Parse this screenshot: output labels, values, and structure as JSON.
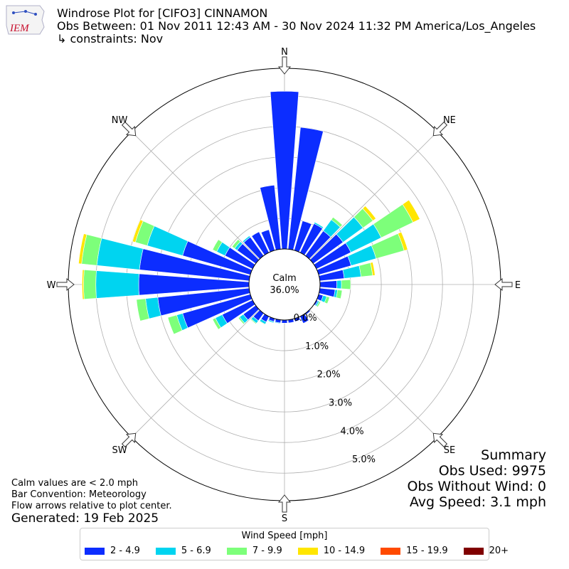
{
  "logo": {
    "text": "IEM"
  },
  "title": {
    "line1": "Windrose Plot for [CIFO3] CINNAMON",
    "line2": "Obs Between: 01 Nov 2011 12:43 AM - 30 Nov 2024 11:32 PM America/Los_Angeles",
    "line3": "↳ constraints: Nov"
  },
  "summary": {
    "heading": "Summary",
    "obs_used": "Obs Used: 9975",
    "obs_without_wind": "Obs Without Wind: 0",
    "avg_speed": "Avg Speed: 3.1 mph"
  },
  "notes": {
    "calm": "Calm values are < 2.0 mph",
    "bar_convention": "Bar Convention: Meteorology",
    "flow_arrows": "Flow arrows relative to plot center.",
    "generated": "Generated: 19 Feb 2025"
  },
  "legend": {
    "title": "Wind Speed [mph]",
    "items": [
      {
        "label": "2 - 4.9",
        "color": "#0c2dff"
      },
      {
        "label": "5 - 6.9",
        "color": "#00d4f0"
      },
      {
        "label": "7 - 9.9",
        "color": "#7dff7a"
      },
      {
        "label": "10 - 14.9",
        "color": "#ffe600"
      },
      {
        "label": "15 - 19.9",
        "color": "#ff4a00"
      },
      {
        "label": "20+",
        "color": "#800000"
      }
    ]
  },
  "chart_data": {
    "type": "windrose",
    "calm_label": "Calm",
    "calm_value": "36.0%",
    "directions": [
      "N",
      "NE",
      "E",
      "SE",
      "S",
      "SW",
      "W",
      "NW"
    ],
    "rlabels": [
      "0.0%",
      "1.0%",
      "2.0%",
      "3.0%",
      "4.0%",
      "5.0%"
    ],
    "rmax_percent": 5.9,
    "sector_degrees": [
      0,
      10,
      20,
      30,
      40,
      50,
      60,
      70,
      80,
      90,
      100,
      110,
      120,
      130,
      140,
      150,
      160,
      170,
      180,
      190,
      200,
      210,
      220,
      230,
      240,
      250,
      260,
      270,
      280,
      290,
      300,
      310,
      320,
      330,
      340,
      350
    ],
    "bins": [
      "2 - 4.9",
      "5 - 6.9",
      "7 - 9.9",
      "10 - 14.9",
      "15 - 19.9",
      "20+"
    ],
    "values": [
      [
        5.15,
        0,
        0,
        0,
        0,
        0
      ],
      [
        4.0,
        0,
        0,
        0,
        0,
        0
      ],
      [
        1.0,
        0,
        0,
        0,
        0,
        0
      ],
      [
        1.05,
        0.05,
        0,
        0,
        0,
        0
      ],
      [
        1.0,
        0.45,
        0.1,
        0,
        0,
        0
      ],
      [
        1.2,
        0.8,
        0.4,
        0.12,
        0,
        0
      ],
      [
        1.25,
        1.1,
        1.15,
        0.25,
        0,
        0
      ],
      [
        1.1,
        0.85,
        0.95,
        0.12,
        0,
        0
      ],
      [
        0.8,
        0.55,
        0.38,
        0.08,
        0,
        0
      ],
      [
        0.55,
        0.15,
        0.3,
        0,
        0,
        0
      ],
      [
        0.5,
        0.08,
        0.15,
        0,
        0,
        0
      ],
      [
        0.15,
        0.12,
        0.1,
        0,
        0,
        0
      ],
      [
        0.05,
        0.05,
        0.05,
        0,
        0,
        0
      ],
      [
        0,
        0,
        0,
        0,
        0,
        0
      ],
      [
        0.05,
        0,
        0,
        0,
        0,
        0
      ],
      [
        0.25,
        0,
        0,
        0,
        0,
        0
      ],
      [
        0.1,
        0,
        0,
        0,
        0,
        0
      ],
      [
        0.1,
        0,
        0,
        0,
        0,
        0
      ],
      [
        0.1,
        0,
        0,
        0,
        0,
        0
      ],
      [
        0.1,
        0.02,
        0,
        0,
        0,
        0
      ],
      [
        0.1,
        0.04,
        0,
        0,
        0,
        0
      ],
      [
        0.2,
        0.08,
        0.02,
        0,
        0,
        0
      ],
      [
        0.3,
        0.1,
        0.03,
        0,
        0,
        0
      ],
      [
        0.5,
        0.15,
        0.05,
        0,
        0,
        0
      ],
      [
        1.1,
        0.25,
        0.1,
        0,
        0,
        0
      ],
      [
        2.3,
        0.2,
        0.3,
        0,
        0,
        0
      ],
      [
        3.0,
        0.4,
        0.3,
        0,
        0,
        0
      ],
      [
        3.6,
        1.4,
        0.4,
        0.05,
        0,
        0
      ],
      [
        3.6,
        1.4,
        0.5,
        0.1,
        0,
        0
      ],
      [
        2.3,
        1.2,
        0.4,
        0.1,
        0,
        0
      ],
      [
        1.0,
        0.3,
        0.15,
        0,
        0,
        0
      ],
      [
        0.75,
        0.1,
        0.1,
        0,
        0,
        0
      ],
      [
        0.75,
        0.05,
        0,
        0,
        0,
        0
      ],
      [
        0.75,
        0,
        0,
        0,
        0,
        0
      ],
      [
        0.7,
        0,
        0,
        0,
        0,
        0
      ],
      [
        2.1,
        0,
        0,
        0,
        0,
        0
      ]
    ]
  }
}
